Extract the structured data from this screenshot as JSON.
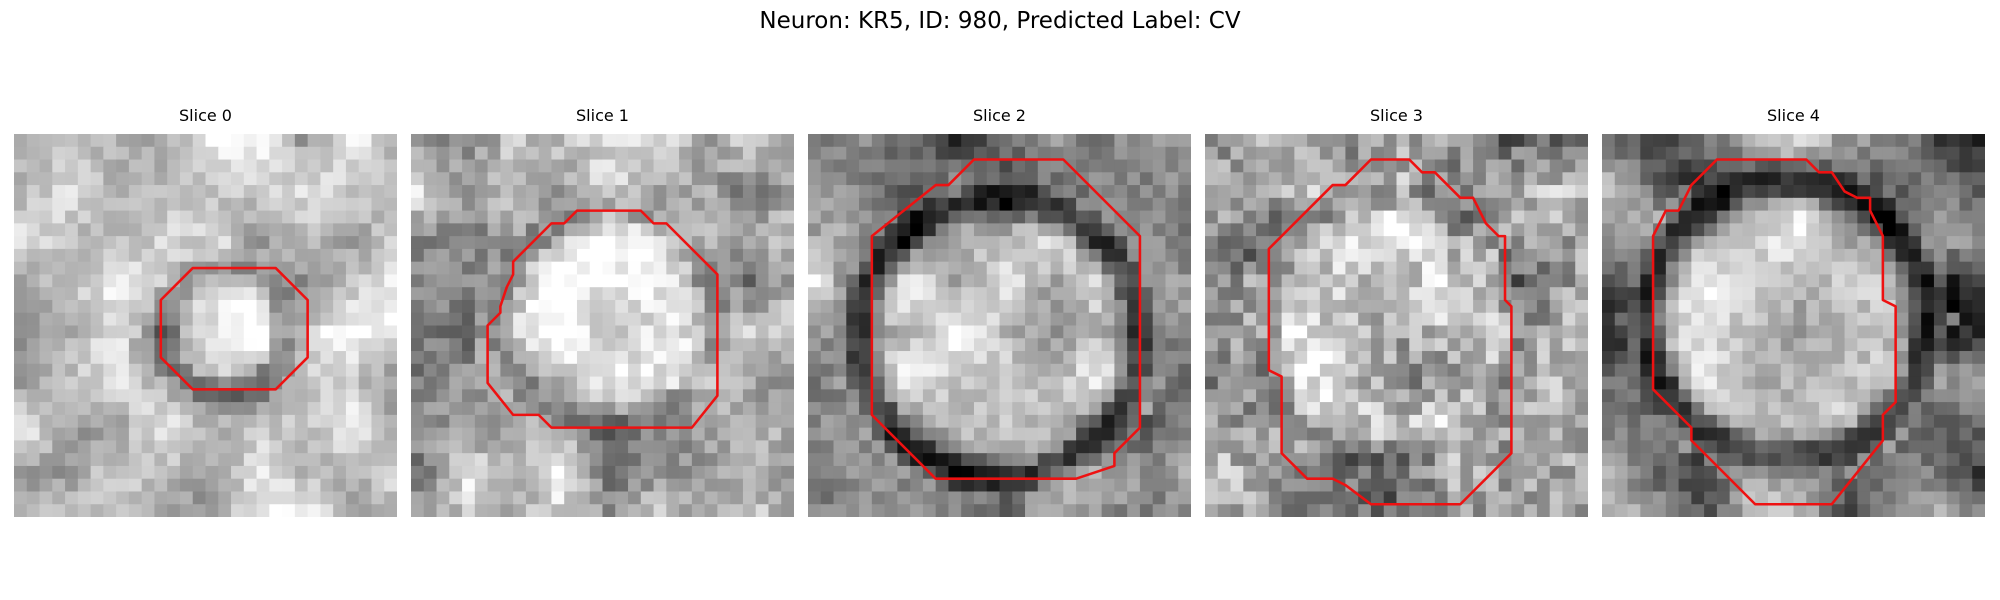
{
  "figure": {
    "title": "Neuron: KR5, ID: 980, Predicted Label: CV",
    "contour_color": "#ee1111"
  },
  "panels": [
    {
      "title": "Slice 0"
    },
    {
      "title": "Slice 1"
    },
    {
      "title": "Slice 2"
    },
    {
      "title": "Slice 3"
    },
    {
      "title": "Slice 4"
    }
  ]
}
